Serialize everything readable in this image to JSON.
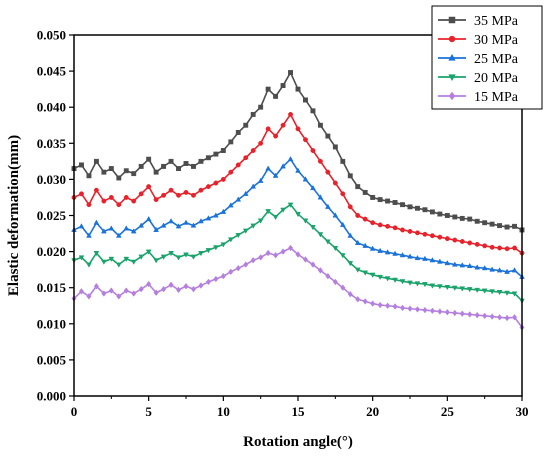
{
  "chart_data": {
    "type": "line",
    "xlabel": "Rotation angle(°)",
    "ylabel": "Elastic deformation(mm)",
    "xlim": [
      0,
      30
    ],
    "ylim": [
      0,
      0.05
    ],
    "xticks": [
      0,
      5,
      10,
      15,
      20,
      25,
      30
    ],
    "xtick_labels": [
      "0",
      "5",
      "10",
      "15",
      "20",
      "25",
      "30"
    ],
    "yticks": [
      0,
      0.005,
      0.01,
      0.015,
      0.02,
      0.025,
      0.03,
      0.035,
      0.04,
      0.045,
      0.05
    ],
    "ytick_labels": [
      "0.000",
      "0.005",
      "0.010",
      "0.015",
      "0.020",
      "0.025",
      "0.030",
      "0.035",
      "0.040",
      "0.045",
      "0.050"
    ],
    "grid": false,
    "legend": "top-right",
    "x": [
      0,
      0.5,
      1,
      1.5,
      2,
      2.5,
      3,
      3.5,
      4,
      4.5,
      5,
      5.5,
      6,
      6.5,
      7,
      7.5,
      8,
      8.5,
      9,
      9.5,
      10,
      10.5,
      11,
      11.5,
      12,
      12.5,
      13,
      13.5,
      14,
      14.5,
      15,
      15.5,
      16,
      16.5,
      17,
      17.5,
      18,
      18.5,
      19,
      19.5,
      20,
      20.5,
      21,
      21.5,
      22,
      22.5,
      23,
      23.5,
      24,
      24.5,
      25,
      25.5,
      26,
      26.5,
      27,
      27.5,
      28,
      28.5,
      29,
      29.5,
      30
    ],
    "series": [
      {
        "name": "35 MPa",
        "color": "#4d4d4d",
        "marker": "square",
        "values": [
          0.0315,
          0.032,
          0.0305,
          0.0325,
          0.031,
          0.0315,
          0.0302,
          0.0312,
          0.0308,
          0.0318,
          0.0328,
          0.031,
          0.0318,
          0.0325,
          0.0315,
          0.0322,
          0.0318,
          0.0325,
          0.033,
          0.0335,
          0.034,
          0.0352,
          0.0365,
          0.0375,
          0.039,
          0.04,
          0.0425,
          0.0415,
          0.043,
          0.0448,
          0.0425,
          0.041,
          0.0395,
          0.0375,
          0.036,
          0.0345,
          0.0325,
          0.0305,
          0.029,
          0.0282,
          0.0275,
          0.0272,
          0.027,
          0.0268,
          0.0265,
          0.0262,
          0.026,
          0.0258,
          0.0255,
          0.0252,
          0.025,
          0.0248,
          0.0246,
          0.0245,
          0.0242,
          0.024,
          0.0238,
          0.0236,
          0.0234,
          0.0235,
          0.023
        ]
      },
      {
        "name": "30 MPa",
        "color": "#e8222b",
        "marker": "circle",
        "values": [
          0.0275,
          0.028,
          0.0265,
          0.0285,
          0.027,
          0.0275,
          0.0265,
          0.0275,
          0.027,
          0.028,
          0.029,
          0.0272,
          0.0278,
          0.0285,
          0.0278,
          0.0282,
          0.0278,
          0.0285,
          0.029,
          0.0295,
          0.03,
          0.031,
          0.032,
          0.033,
          0.034,
          0.035,
          0.037,
          0.036,
          0.0375,
          0.039,
          0.037,
          0.0355,
          0.034,
          0.0325,
          0.031,
          0.0295,
          0.028,
          0.0262,
          0.025,
          0.0245,
          0.024,
          0.0237,
          0.0235,
          0.0233,
          0.023,
          0.0228,
          0.0226,
          0.0224,
          0.0222,
          0.022,
          0.0218,
          0.0216,
          0.0214,
          0.0212,
          0.021,
          0.0208,
          0.0206,
          0.0205,
          0.0204,
          0.0205,
          0.0198
        ]
      },
      {
        "name": "25 MPa",
        "color": "#1a73d9",
        "marker": "triangle-up",
        "values": [
          0.023,
          0.0235,
          0.0222,
          0.024,
          0.0228,
          0.0232,
          0.0222,
          0.0232,
          0.0228,
          0.0236,
          0.0245,
          0.023,
          0.0236,
          0.0242,
          0.0235,
          0.024,
          0.0236,
          0.0242,
          0.0246,
          0.025,
          0.0255,
          0.0264,
          0.0272,
          0.028,
          0.029,
          0.0298,
          0.0315,
          0.0305,
          0.0318,
          0.0328,
          0.0312,
          0.03,
          0.0288,
          0.0275,
          0.0262,
          0.025,
          0.0237,
          0.0222,
          0.0212,
          0.0208,
          0.0204,
          0.0201,
          0.0199,
          0.0197,
          0.0195,
          0.0193,
          0.0191,
          0.019,
          0.0188,
          0.0186,
          0.0184,
          0.0182,
          0.0181,
          0.018,
          0.0178,
          0.0177,
          0.0175,
          0.0174,
          0.0172,
          0.0174,
          0.0165
        ]
      },
      {
        "name": "20 MPa",
        "color": "#1aa36b",
        "marker": "triangle-down",
        "values": [
          0.0188,
          0.0192,
          0.0182,
          0.0198,
          0.0186,
          0.019,
          0.0182,
          0.019,
          0.0186,
          0.0193,
          0.02,
          0.0188,
          0.0193,
          0.0198,
          0.0192,
          0.0196,
          0.0193,
          0.0198,
          0.0202,
          0.0206,
          0.021,
          0.0217,
          0.0223,
          0.0229,
          0.0236,
          0.0243,
          0.0256,
          0.0248,
          0.0258,
          0.0265,
          0.0252,
          0.0243,
          0.0234,
          0.0224,
          0.0214,
          0.0205,
          0.0195,
          0.0184,
          0.0175,
          0.0171,
          0.0168,
          0.0165,
          0.0163,
          0.0161,
          0.0159,
          0.0157,
          0.0156,
          0.0155,
          0.0153,
          0.0152,
          0.0151,
          0.015,
          0.0149,
          0.0148,
          0.0147,
          0.0146,
          0.0145,
          0.0144,
          0.0143,
          0.0142,
          0.0132
        ]
      },
      {
        "name": "15 MPa",
        "color": "#b57fe0",
        "marker": "diamond",
        "values": [
          0.0135,
          0.0145,
          0.0138,
          0.0152,
          0.0142,
          0.0146,
          0.0138,
          0.0146,
          0.0142,
          0.0148,
          0.0155,
          0.0143,
          0.0148,
          0.0154,
          0.0147,
          0.0152,
          0.0148,
          0.0153,
          0.0158,
          0.0162,
          0.0166,
          0.0172,
          0.0177,
          0.0182,
          0.0188,
          0.0192,
          0.0198,
          0.0195,
          0.02,
          0.0205,
          0.0196,
          0.0189,
          0.0182,
          0.0174,
          0.0166,
          0.0158,
          0.015,
          0.0141,
          0.0134,
          0.0131,
          0.0128,
          0.0126,
          0.0125,
          0.0124,
          0.0122,
          0.0121,
          0.012,
          0.0119,
          0.0118,
          0.0117,
          0.0116,
          0.0115,
          0.0114,
          0.0113,
          0.0112,
          0.0111,
          0.011,
          0.0109,
          0.0108,
          0.0109,
          0.0095
        ]
      }
    ]
  }
}
